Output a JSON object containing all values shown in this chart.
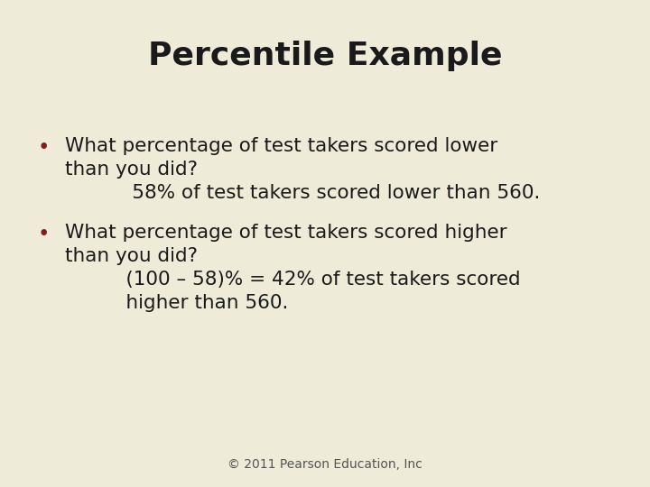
{
  "title": "Percentile Example",
  "background_color": "#eeebd8",
  "title_color": "#1a1a1a",
  "title_fontsize": 26,
  "title_fontweight": "bold",
  "bullet_color": "#8b1a1a",
  "text_color": "#1a1a1a",
  "footer": "© 2011 Pearson Education, Inc",
  "footer_color": "#555555",
  "footer_fontsize": 10,
  "bullet1_line1": "What percentage of test takers scored lower",
  "bullet1_line2": "than you did?",
  "bullet1_line3": "      58% of test takers scored lower than 560.",
  "bullet2_line1": "What percentage of test takers scored higher",
  "bullet2_line2": "than you did?",
  "bullet2_line3": "     (100 – 58)% = 42% of test takers scored",
  "bullet2_line4": "     higher than 560.",
  "body_fontsize": 15.5
}
